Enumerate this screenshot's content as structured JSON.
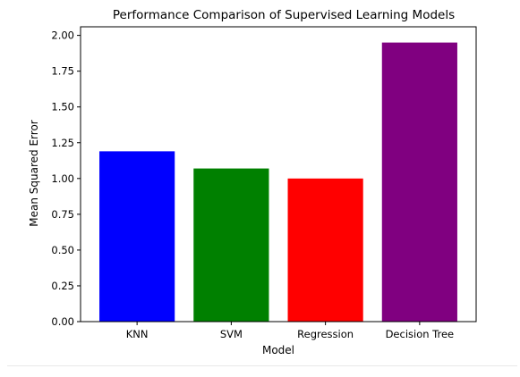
{
  "chart_data": {
    "type": "bar",
    "title": "Performance Comparison of Supervised Learning Models",
    "xlabel": "Model",
    "ylabel": "Mean Squared Error",
    "categories": [
      "KNN",
      "SVM",
      "Regression",
      "Decision Tree"
    ],
    "values": [
      1.19,
      1.07,
      1.0,
      1.95
    ],
    "colors": [
      "#0000ff",
      "#008000",
      "#ff0000",
      "#800080"
    ],
    "ylim": [
      0,
      2.06
    ],
    "yticks": [
      {
        "value": 0.0,
        "label": "0.00"
      },
      {
        "value": 0.25,
        "label": "0.25"
      },
      {
        "value": 0.5,
        "label": "0.50"
      },
      {
        "value": 0.75,
        "label": "0.75"
      },
      {
        "value": 1.0,
        "label": "1.00"
      },
      {
        "value": 1.25,
        "label": "1.25"
      },
      {
        "value": 1.5,
        "label": "1.50"
      },
      {
        "value": 1.75,
        "label": "1.75"
      },
      {
        "value": 2.0,
        "label": "2.00"
      }
    ],
    "grid": false,
    "legend": "none"
  }
}
